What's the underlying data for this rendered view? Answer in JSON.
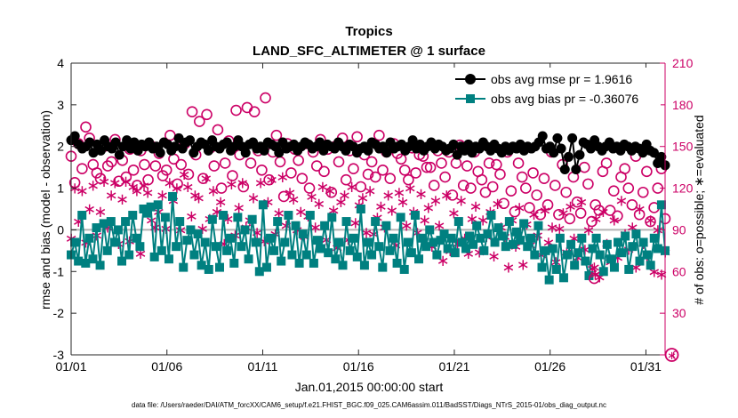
{
  "chart_data": {
    "type": "line",
    "title": "Tropics",
    "subtitle": "LAND_SFC_ALTIMETER @ 1 surface",
    "xlabel": "Jan.01,2015 00:00:00 start",
    "ylabel_left": "rmse and bias (model - observation)",
    "ylabel_right": "# of obs: o=possible; ∗=evaluated",
    "ylim_left": [
      -3,
      4
    ],
    "ylim_right": [
      0,
      210
    ],
    "xlim": [
      0,
      31
    ],
    "x_ticks": [
      0,
      5,
      10,
      15,
      20,
      25,
      30
    ],
    "x_tick_labels": [
      "01/01",
      "01/06",
      "01/11",
      "01/16",
      "01/21",
      "01/26",
      "01/31"
    ],
    "left_ticks": [
      "4",
      "3",
      "2",
      "1",
      "0",
      "-1",
      "-2",
      "-3"
    ],
    "right_ticks": [
      "210",
      "180",
      "150",
      "120",
      "90",
      "60",
      "30",
      "0"
    ],
    "legend": {
      "rmse_label": "obs avg rmse pr = 1.9616",
      "bias_label": "obs avg bias pr = -0.36076"
    },
    "footer_text": "data file: /Users/raeder/DAI/ATM_forcXX/CAM6_setup/f.e21.FHIST_BGC.f09_025.CAM6assim.011/BadSST/Diags_NTrS_2015-01/obs_diag_output.nc",
    "colors": {
      "rmse": "#000000",
      "bias": "#008080",
      "counts": "#cc0066",
      "zero_line": "#b3b3b3"
    },
    "series": [
      {
        "name": "rmse",
        "axis": "left",
        "values": [
          2.15,
          2.25,
          2.05,
          1.95,
          2.0,
          2.1,
          1.85,
          2.05,
          1.9,
          2.15,
          2.0,
          1.95,
          2.1,
          1.8,
          2.0,
          2.15,
          1.95,
          2.1,
          1.9,
          2.05,
          2.0,
          2.1,
          1.95,
          2.0,
          1.85,
          2.1,
          2.05,
          1.9,
          2.0,
          2.2,
          1.95,
          2.1,
          2.15,
          1.85,
          2.0,
          2.1,
          2.05,
          1.9,
          2.15,
          2.0,
          1.95,
          2.05,
          2.1,
          1.9,
          2.0,
          2.15,
          2.0,
          1.85,
          2.05,
          2.1,
          1.95,
          2.0,
          1.9,
          2.1,
          2.05,
          2.0,
          1.85,
          2.1,
          1.95,
          2.0,
          2.05,
          1.9,
          2.0,
          2.1,
          2.05,
          1.95,
          2.0,
          2.1,
          1.9,
          2.05,
          2.0,
          1.95,
          2.1,
          2.0,
          1.9,
          2.05,
          2.0,
          1.85,
          1.95,
          2.0,
          1.9,
          2.1,
          2.05,
          1.95,
          2.0,
          1.85,
          2.1,
          1.95,
          2.0,
          2.05,
          1.9,
          2.0,
          2.15,
          1.95,
          2.05,
          1.9,
          2.0,
          2.1,
          1.95,
          2.05,
          2.0,
          1.9,
          1.95,
          2.05,
          1.8,
          2.0,
          1.9,
          2.05,
          1.85,
          2.0,
          1.95,
          2.1,
          2.0,
          1.9,
          2.05,
          1.95,
          1.85,
          2.0,
          1.9,
          2.0,
          1.95,
          2.05,
          1.9,
          2.0,
          1.95,
          2.0,
          2.1,
          2.25,
          1.95,
          2.0,
          1.85,
          2.2,
          1.95,
          1.45,
          1.75,
          2.2,
          1.45,
          1.8,
          2.1,
          2.05,
          1.95,
          2.15,
          2.0,
          1.9,
          2.0,
          2.1,
          1.95,
          2.0,
          1.9,
          2.05,
          2.0,
          1.9,
          2.0,
          1.95,
          1.85,
          2.05,
          1.9,
          1.85,
          1.6,
          1.75,
          1.55
        ]
      },
      {
        "name": "bias",
        "axis": "left",
        "values": [
          -0.6,
          -0.3,
          -0.75,
          0.35,
          -0.8,
          -0.2,
          -0.7,
          0.05,
          -0.85,
          0.15,
          -0.5,
          0.2,
          -0.3,
          0.0,
          -0.75,
          0.2,
          -0.6,
          0.35,
          -0.2,
          -0.4,
          0.5,
          0.4,
          0.55,
          -0.65,
          0.6,
          -0.5,
          0.3,
          -0.7,
          0.8,
          -0.4,
          0.2,
          -0.9,
          -0.25,
          0.0,
          -0.6,
          -0.1,
          -0.85,
          -0.3,
          -0.95,
          0.25,
          -0.4,
          -0.9,
          0.35,
          -0.5,
          -0.2,
          -0.8,
          0.3,
          -0.4,
          0.0,
          -0.7,
          0.25,
          -0.3,
          -1.0,
          0.6,
          -0.9,
          -0.2,
          -0.5,
          0.2,
          -0.75,
          -0.3,
          0.35,
          -0.6,
          0.1,
          -0.8,
          -0.1,
          -0.6,
          0.35,
          -0.8,
          -0.25,
          -0.45,
          0.1,
          -0.55,
          0.3,
          -0.7,
          -0.3,
          -0.85,
          0.2,
          -0.5,
          -0.2,
          -0.65,
          0.5,
          -0.85,
          -0.3,
          -0.6,
          0.2,
          -0.4,
          -0.9,
          0.1,
          -0.5,
          -0.2,
          -0.8,
          0.3,
          -0.95,
          -0.3,
          -0.55,
          0.35,
          -0.7,
          -0.2,
          -0.4,
          0.0,
          -0.3,
          -0.6,
          -0.25,
          -0.1,
          -0.45,
          -0.2,
          -0.55,
          0.2,
          -0.3,
          -0.45,
          -0.15,
          -0.35,
          0.1,
          -0.2,
          -0.5,
          -0.1,
          0.35,
          -0.3,
          0.05,
          -0.15,
          -0.4,
          0.2,
          -0.35,
          -0.05,
          -0.25,
          0.15,
          -0.4,
          -0.2,
          -0.6,
          0.1,
          -0.9,
          -0.5,
          -1.2,
          -0.45,
          -0.95,
          -0.2,
          -1.15,
          -0.6,
          -0.35,
          -0.85,
          -0.55,
          -0.2,
          -0.75,
          -1.1,
          -0.45,
          -0.2,
          -0.6,
          -1.0,
          -0.35,
          -0.7,
          -0.9,
          -0.3,
          -0.55,
          -0.15,
          -0.95,
          -0.4,
          -0.1,
          -0.75,
          -0.3,
          -0.6,
          -0.85,
          -0.2,
          -0.45,
          0.6,
          -0.5
        ]
      },
      {
        "name": "possible",
        "axis": "right",
        "values": [
          143,
          124,
          152,
          134,
          164,
          156,
          137,
          131,
          127,
          150,
          136,
          139,
          155,
          125,
          140,
          128,
          148,
          133,
          122,
          147,
          137,
          126,
          150,
          136,
          145,
          129,
          133,
          158,
          141,
          123,
          137,
          152,
          130,
          175,
          144,
          168,
          127,
          173,
          149,
          136,
          162,
          120,
          138,
          154,
          129,
          176,
          144,
          121,
          178,
          138,
          175,
          147,
          133,
          185,
          126,
          146,
          158,
          139,
          114,
          152,
          131,
          148,
          140,
          127,
          152,
          120,
          146,
          136,
          155,
          132,
          148,
          117,
          150,
          139,
          156,
          126,
          147,
          134,
          157,
          121,
          144,
          130,
          139,
          128,
          158,
          133,
          146,
          127,
          152,
          145,
          141,
          133,
          126,
          149,
          131,
          144,
          143,
          135,
          135,
          122,
          147,
          138,
          128,
          146,
          115,
          138,
          151,
          122,
          136,
          120,
          146,
          132,
          126,
          117,
          138,
          121,
          137,
          130,
          109,
          146,
          118,
          103,
          138,
          128,
          120,
          106,
          131,
          115,
          101,
          127,
          108,
          146,
          122,
          101,
          137,
          117,
          98,
          128,
          110,
          102,
          135,
          123,
          96,
          108,
          104,
          132,
          138,
          104,
          118,
          100,
          128,
          134,
          120,
          108,
          143,
          101,
          117,
          132,
          96,
          106,
          120,
          134,
          98
        ]
      },
      {
        "name": "evaluated",
        "axis": "right",
        "values": [
          84,
          120,
          96,
          118,
          81,
          105,
          122,
          86,
          103,
          125,
          92,
          115,
          124,
          80,
          112,
          125,
          82,
          121,
          118,
          73,
          122,
          117,
          97,
          92,
          103,
          115,
          91,
          124,
          111,
          120,
          90,
          130,
          121,
          100,
          115,
          113,
          91,
          127,
          98,
          118,
          103,
          110,
          80,
          98,
          123,
          86,
          106,
          124,
          92,
          97,
          113,
          88,
          124,
          82,
          110,
          126,
          87,
          102,
          128,
          93,
          117,
          112,
          90,
          103,
          85,
          100,
          114,
          92,
          109,
          121,
          83,
          118,
          104,
          77,
          110,
          115,
          83,
          121,
          95,
          108,
          113,
          88,
          118,
          87,
          99,
          107,
          92,
          115,
          104,
          79,
          117,
          110,
          93,
          120,
          103,
          88,
          116,
          97,
          106,
          78,
          111,
          93,
          68,
          115,
          75,
          102,
          80,
          111,
          84,
          73,
          98,
          107,
          74,
          97,
          85,
          103,
          71,
          109,
          92,
          85,
          63,
          97,
          78,
          106,
          65,
          94,
          79,
          101,
          86,
          72,
          104,
          81,
          92,
          67,
          91,
          102,
          74,
          107,
          84,
          70,
          110,
          76,
          90,
          62,
          98,
          56,
          103,
          80,
          67,
          97,
          70,
          111,
          87,
          76,
          92,
          63,
          105,
          80,
          71,
          97,
          60,
          90,
          58,
          74
        ]
      }
    ],
    "special_markers": {
      "rmse_outliers": [
        {
          "x": 27.5,
          "value": 1.45
        }
      ],
      "evaluated_outliers": [
        {
          "x": 27.3,
          "value": 63
        },
        {
          "x": 27.35,
          "value": 58
        }
      ],
      "possible_outliers": [
        {
          "x": 27.3,
          "value": 55
        }
      ],
      "zero_marker_right": {
        "x": 31.35,
        "value": 0
      }
    }
  }
}
